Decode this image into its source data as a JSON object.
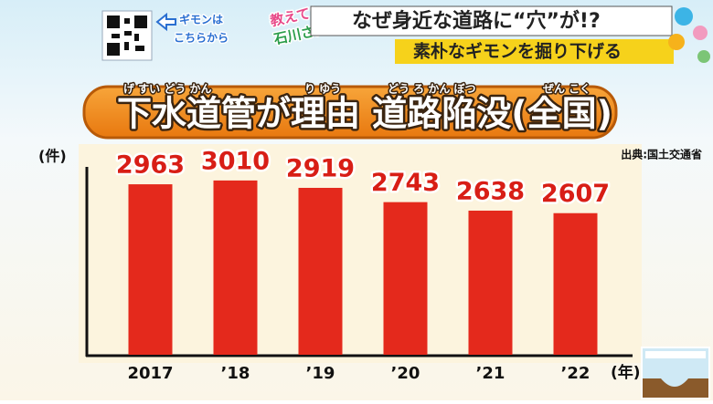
{
  "header": {
    "qr_caption": [
      "ギモンは",
      "こちらから"
    ],
    "logo": [
      "教えて!",
      "石川さん"
    ],
    "headline": "なぜ身近な道路に“穴”が!?",
    "subheadline": "素朴なギモンを掘り下げる"
  },
  "chart_data": {
    "type": "bar",
    "title": "下水道管が理由 道路陥没(全国)",
    "title_ruby": [
      "げ すい どう かん",
      "り ゆう",
      "どう ろ かん ぼつ",
      "ぜん こく"
    ],
    "y_label": "(件)",
    "x_label": "(年)",
    "source": "出典:国土交通省",
    "categories": [
      "2017",
      "’18",
      "’19",
      "’20",
      "’21",
      "’22"
    ],
    "values": [
      2963,
      3010,
      2919,
      2743,
      2638,
      2607
    ],
    "color": "#e4291c",
    "label_color": "#d81e16",
    "ylim": [
      850,
      3200
    ]
  }
}
